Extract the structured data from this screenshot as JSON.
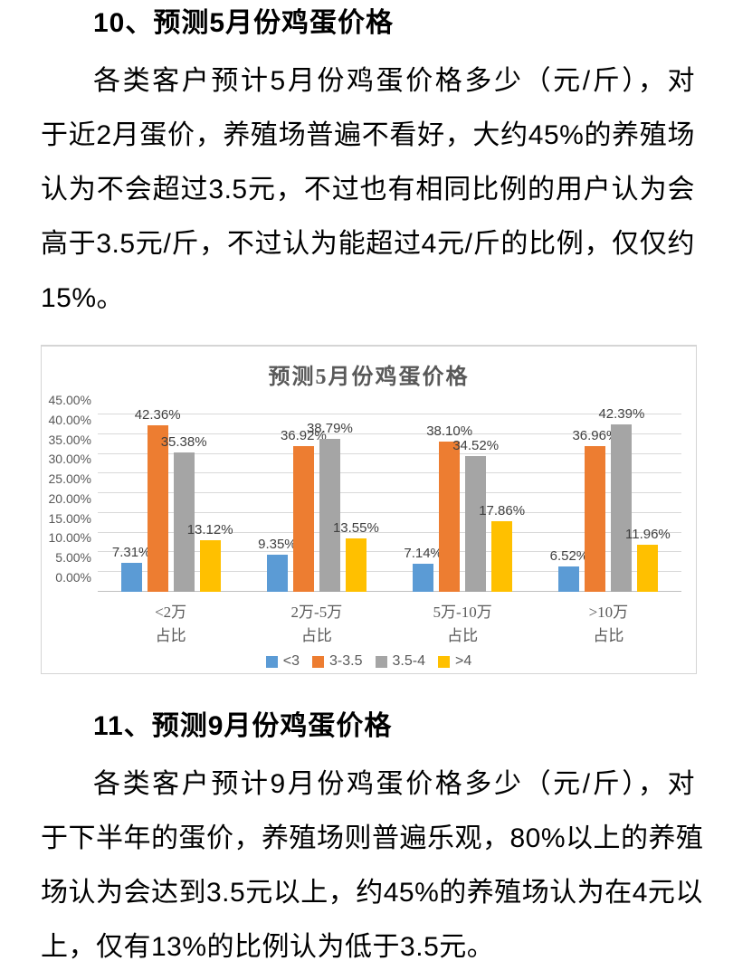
{
  "section10": {
    "heading": "10、预测5月份鸡蛋价格",
    "lines": [
      "各类客户预计5月份鸡蛋价格多少（元/斤），对",
      "于近2月蛋价，养殖场普遍不看好，大约45%的养殖场",
      "认为不会超过3.5元，不过也有相同比例的用户认为会",
      "高于3.5元/斤，不过认为能超过4元/斤的比例，仅仅约",
      "15%。"
    ]
  },
  "section11": {
    "heading": "11、预测9月份鸡蛋价格",
    "lines": [
      "各类客户预计9月份鸡蛋价格多少（元/斤），对",
      "于下半年的蛋价，养殖场则普遍乐观，80%以上的养殖",
      "场认为会达到3.5元以上，约45%的养殖场认为在4元以",
      "上，仅有13%的比例认为低于3.5元。"
    ]
  },
  "chart_data": {
    "type": "bar",
    "title": "预测5月份鸡蛋价格",
    "categories": [
      {
        "line1": "<2万",
        "line2": "占比"
      },
      {
        "line1": "2万-5万",
        "line2": "占比"
      },
      {
        "line1": "5万-10万",
        "line2": "占比"
      },
      {
        "line1": ">10万",
        "line2": "占比"
      }
    ],
    "series": [
      {
        "name": "<3",
        "color": "#5B9BD5",
        "values": [
          7.31,
          9.35,
          7.14,
          6.52
        ]
      },
      {
        "name": "3-3.5",
        "color": "#ED7D31",
        "values": [
          42.36,
          36.92,
          38.1,
          36.96
        ]
      },
      {
        "name": "3.5-4",
        "color": "#A5A5A5",
        "values": [
          35.38,
          38.79,
          34.52,
          42.39
        ]
      },
      {
        "name": ">4",
        "color": "#FFC000",
        "values": [
          13.12,
          13.55,
          17.86,
          11.96
        ]
      }
    ],
    "data_labels": [
      [
        "7.31%",
        "9.35%",
        "7.14%",
        "6.52%"
      ],
      [
        "42.36%",
        "36.92%",
        "38.10%",
        "36.96%"
      ],
      [
        "35.38%",
        "38.79%",
        "34.52%",
        "42.39%"
      ],
      [
        "13.12%",
        "13.55%",
        "17.86%",
        "11.96%"
      ]
    ],
    "y_ticks": [
      "0.00%",
      "5.00%",
      "10.00%",
      "15.00%",
      "20.00%",
      "25.00%",
      "30.00%",
      "35.00%",
      "40.00%",
      "45.00%"
    ],
    "ylabel": "",
    "xlabel": "",
    "ylim": [
      0,
      45
    ],
    "y_step": 5,
    "grid": true,
    "legend_position": "bottom",
    "colors": {
      "grid": "#d9d9d9",
      "axis": "#bfbfbf",
      "tick_text": "#595959",
      "label_text": "#404040",
      "title_text": "#595959"
    }
  }
}
